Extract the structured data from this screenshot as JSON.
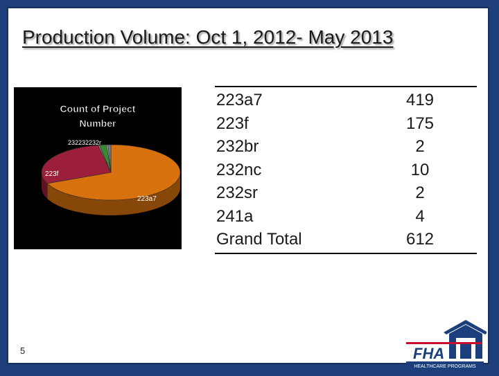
{
  "slide": {
    "title": "Production Volume: Oct 1, 2012- May 2013",
    "page_number": "5"
  },
  "chart_data": {
    "type": "pie",
    "title": "Count of Project Number",
    "categories": [
      "223a7",
      "223f",
      "232br",
      "232nc",
      "232sr",
      "241a"
    ],
    "values": [
      419,
      175,
      2,
      10,
      2,
      4
    ],
    "colors": [
      "#d8720e",
      "#9b1e3a",
      "#8a9aa6",
      "#3b8a2e",
      "#a8b4be",
      "#6f7f8c"
    ],
    "background": "#000000",
    "legend": "none",
    "three_d": true
  },
  "chart_labels": {
    "small_cluster_text": "232232232r",
    "223f": "223f",
    "223a7": "223a7"
  },
  "table": {
    "rows": [
      {
        "label": "223a7",
        "value": "419"
      },
      {
        "label": "223f",
        "value": "175"
      },
      {
        "label": "232br",
        "value": "2"
      },
      {
        "label": "232nc",
        "value": "10"
      },
      {
        "label": "232sr",
        "value": "2"
      },
      {
        "label": "241a",
        "value": "4"
      },
      {
        "label": "Grand Total",
        "value": "612"
      }
    ]
  },
  "logo": {
    "text": "FHA",
    "subtext": "HEALTHCARE PROGRAMS",
    "colors": {
      "navy": "#1a3f7c",
      "red": "#c8102e",
      "grey": "#8a8f96"
    }
  }
}
